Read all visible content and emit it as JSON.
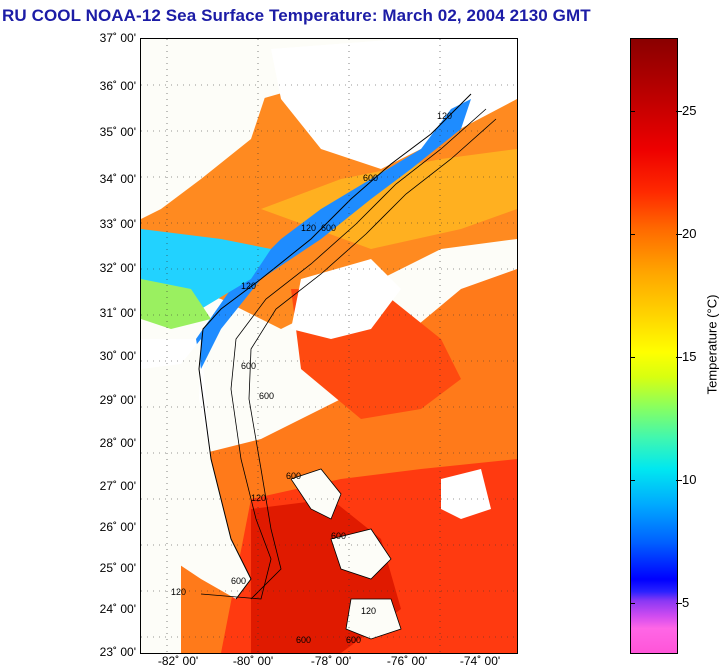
{
  "title": "RU COOL  NOAA-12  Sea Surface Temperature:  March 02, 2004 2130 GMT",
  "lat_labels": [
    "37˚ 00'",
    "36˚ 00'",
    "35˚ 00'",
    "34˚ 00'",
    "33˚ 00'",
    "32˚ 00'",
    "31˚ 00'",
    "30˚ 00'",
    "29˚ 00'",
    "28˚ 00'",
    "27˚ 00'",
    "26˚ 00'",
    "25˚ 00'",
    "24˚ 00'",
    "23˚ 00'"
  ],
  "lon_labels": [
    "-82˚ 00'",
    "-80˚ 00'",
    "-78˚ 00'",
    "-76˚ 00'",
    "-74˚ 00'"
  ],
  "colorbar": {
    "title": "Temperature (°C)",
    "ticks": [
      "25",
      "20",
      "15",
      "10",
      "5"
    ]
  },
  "contour_labels": [
    "120",
    "600",
    "120",
    "600",
    "120",
    "600",
    "600",
    "600",
    "120",
    "600",
    "120",
    "600",
    "120",
    "600",
    "600"
  ],
  "colors": {
    "title": "#1c1ca6",
    "land": "#fdfdf8",
    "warm": "#ff3a00",
    "cool": "#1e8cff"
  }
}
